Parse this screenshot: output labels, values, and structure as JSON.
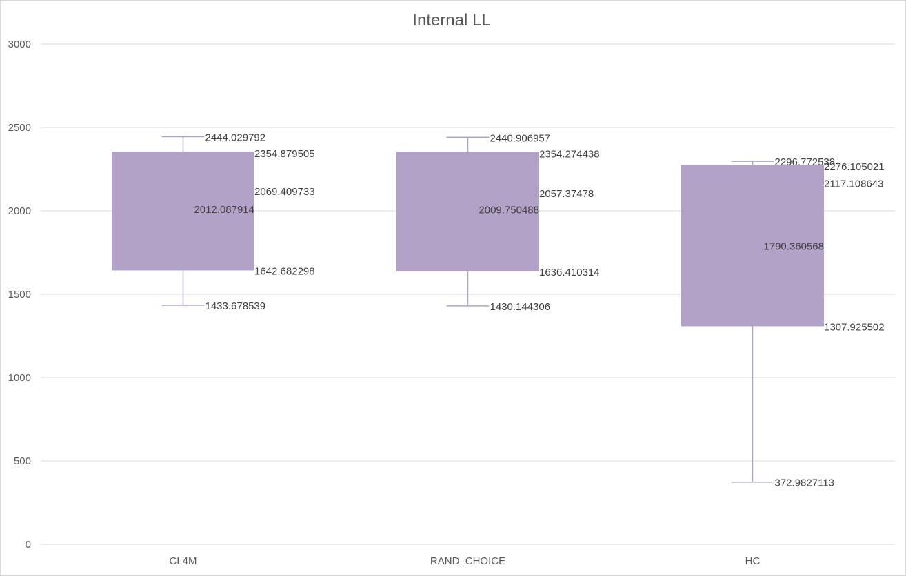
{
  "chart_data": {
    "type": "box",
    "title": "Internal LL",
    "xlabel": "",
    "ylabel": "",
    "ylim": [
      0,
      3000
    ],
    "yticks": [
      "0",
      "500",
      "1000",
      "1500",
      "2000",
      "2500",
      "3000"
    ],
    "grid": true,
    "colors": {
      "box": "#b3a2c7",
      "grid": "#d9d9d9",
      "text": "#595959"
    },
    "categories": [
      "CL4M",
      "RAND_CHOICE",
      "HC"
    ],
    "boxes": [
      {
        "name": "CL4M",
        "max": 2444.029792,
        "max_label": "2444.029792",
        "q3": 2354.879505,
        "q3_label": "2354.879505",
        "mean": 2069.409733,
        "mean_label": "2069.409733",
        "median": 2012.087914,
        "median_label": "2012.087914",
        "q1": 1642.682298,
        "q1_label": "1642.682298",
        "min": 1433.678539,
        "min_label": "1433.678539"
      },
      {
        "name": "RAND_CHOICE",
        "max": 2440.906957,
        "max_label": "2440.906957",
        "q3": 2354.274438,
        "q3_label": "2354.274438",
        "mean": 2057.37478,
        "mean_label": "2057.37478",
        "median": 2009.750488,
        "median_label": "2009.750488",
        "q1": 1636.410314,
        "q1_label": "1636.410314",
        "min": 1430.144306,
        "min_label": "1430.144306"
      },
      {
        "name": "HC",
        "max": 2296.772538,
        "max_label": "2296.772538",
        "q3": 2276.105021,
        "q3_label": "2276.105021",
        "mean": 2117.108643,
        "mean_label": "2117.108643",
        "median": 1790.360568,
        "median_label": "1790.360568",
        "q1": 1307.925502,
        "q1_label": "1307.925502",
        "min": 372.9827113,
        "min_label": "372.9827113"
      }
    ]
  }
}
